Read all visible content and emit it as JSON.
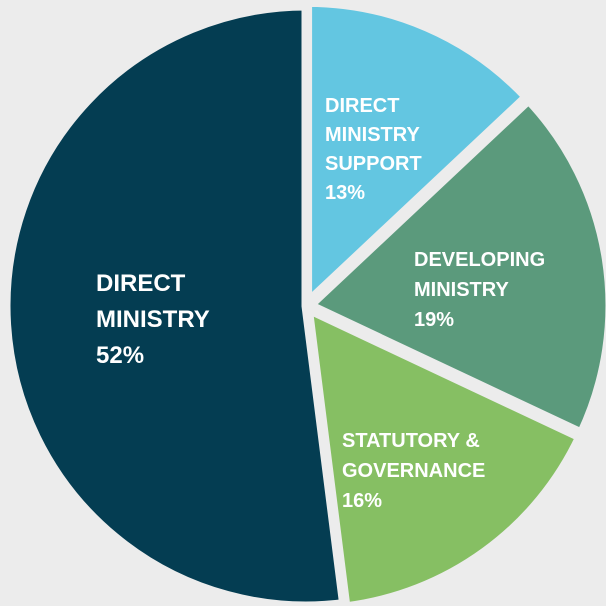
{
  "chart_data": {
    "type": "pie",
    "title": "",
    "start_angle_deg": 0,
    "direction": "clockwise",
    "background": "#ececec",
    "separator_color": "#ececec",
    "slices": [
      {
        "name_lines": [
          "DIRECT",
          "MINISTRY",
          "SUPPORT"
        ],
        "value": 13,
        "value_label": "13%",
        "color": "#63c6e1"
      },
      {
        "name_lines": [
          "DEVELOPING",
          "MINISTRY"
        ],
        "value": 19,
        "value_label": "19%",
        "color": "#5b9a7c"
      },
      {
        "name_lines": [
          "STATUTORY &",
          "GOVERNANCE"
        ],
        "value": 16,
        "value_label": "16%",
        "color": "#86bf63"
      },
      {
        "name_lines": [
          "DIRECT",
          "MINISTRY"
        ],
        "value": 52,
        "value_label": "52%",
        "color": "#043d52"
      }
    ]
  }
}
